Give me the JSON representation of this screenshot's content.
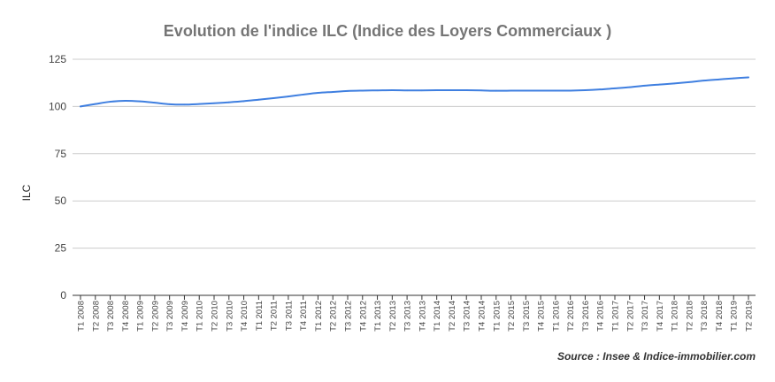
{
  "chart_data": {
    "type": "line",
    "title": "Evolution de l'indice ILC (Indice des Loyers Commerciaux )",
    "xlabel": "",
    "ylabel": "ILC",
    "ylim": [
      0,
      125
    ],
    "yticks": [
      0,
      25,
      50,
      75,
      100,
      125
    ],
    "grid": true,
    "legend": "none",
    "series_color": "#3f7fe0",
    "source": "Source : Insee & Indice-immobilier.com",
    "categories": [
      "T1 2008",
      "T2 2008",
      "T3 2008",
      "T4 2008",
      "T1 2009",
      "T2 2009",
      "T3 2009",
      "T4 2009",
      "T1 2010",
      "T2 2010",
      "T3 2010",
      "T4 2010",
      "T1 2011",
      "T2 2011",
      "T3 2011",
      "T4 2011",
      "T1 2012",
      "T2 2012",
      "T3 2012",
      "T4 2012",
      "T1 2013",
      "T2 2013",
      "T3 2013",
      "T4 2013",
      "T1 2014",
      "T2 2014",
      "T3 2014",
      "T4 2014",
      "T1 2015",
      "T2 2015",
      "T3 2015",
      "T4 2015",
      "T1 2016",
      "T2 2016",
      "T3 2016",
      "T4 2016",
      "T1 2017",
      "T2 2017",
      "T3 2017",
      "T4 2017",
      "T1 2018",
      "T2 2018",
      "T3 2018",
      "T4 2018",
      "T1 2019",
      "T2 2019"
    ],
    "series": [
      {
        "name": "",
        "values": [
          100.0,
          101.3,
          102.5,
          103.0,
          102.7,
          102.0,
          101.2,
          101.0,
          101.3,
          101.7,
          102.2,
          102.8,
          103.6,
          104.4,
          105.3,
          106.3,
          107.2,
          107.7,
          108.2,
          108.4,
          108.5,
          108.6,
          108.5,
          108.5,
          108.6,
          108.6,
          108.6,
          108.5,
          108.3,
          108.4,
          108.4,
          108.4,
          108.4,
          108.4,
          108.6,
          109.0,
          109.6,
          110.2,
          111.0,
          111.6,
          112.2,
          112.9,
          113.7,
          114.3,
          114.9,
          115.4
        ]
      }
    ]
  }
}
